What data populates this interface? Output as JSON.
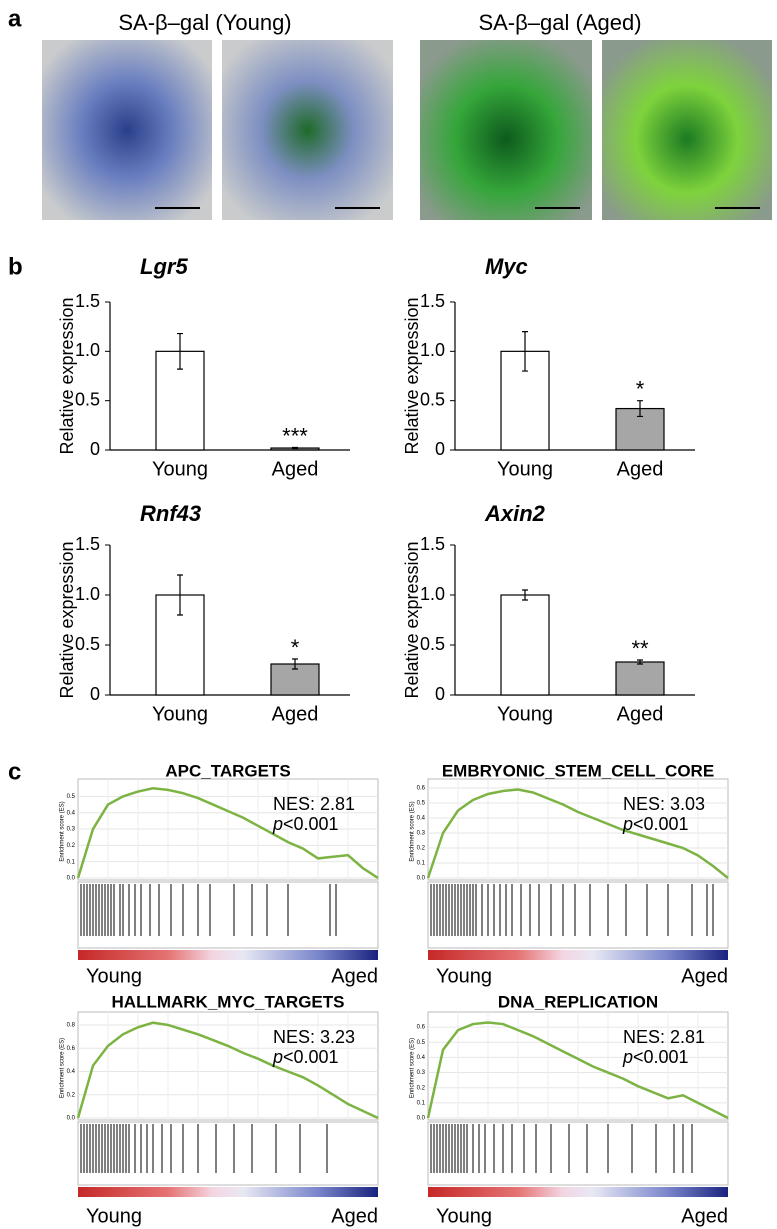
{
  "panel_labels": [
    "a",
    "b",
    "c"
  ],
  "images": {
    "titles": [
      "SA-β–gal (Young)",
      "SA-β–gal (Aged)"
    ]
  },
  "chart_data": [
    {
      "type": "bar",
      "title": "Lgr5",
      "ylabel": "Relative expression",
      "categories": [
        "Young",
        "Aged"
      ],
      "values": [
        1,
        0.02
      ],
      "errors": [
        0.18,
        0.005
      ],
      "colors": [
        "#ffffff",
        "#a6a6a6"
      ],
      "value_annotations": [
        null,
        "***"
      ],
      "ylim": [
        0,
        1.5
      ],
      "yticks": [
        0,
        0.5,
        {
          "value": 1,
          "label": "1.0"
        },
        1.5
      ]
    },
    {
      "type": "bar",
      "title": "Myc",
      "ylabel": "Relative expression",
      "categories": [
        "Young",
        "Aged"
      ],
      "values": [
        1,
        0.42
      ],
      "errors": [
        0.2,
        0.08
      ],
      "colors": [
        "#ffffff",
        "#a6a6a6"
      ],
      "value_annotations": [
        null,
        "*"
      ],
      "ylim": [
        0,
        1.5
      ],
      "yticks": [
        0,
        0.5,
        {
          "value": 1,
          "label": "1.0"
        },
        1.5
      ]
    },
    {
      "type": "bar",
      "title": "Rnf43",
      "ylabel": "Relative expression",
      "categories": [
        "Young",
        "Aged"
      ],
      "values": [
        1,
        0.31
      ],
      "errors": [
        0.2,
        0.05
      ],
      "colors": [
        "#ffffff",
        "#a6a6a6"
      ],
      "value_annotations": [
        null,
        "*"
      ],
      "ylim": [
        0,
        1.5
      ],
      "yticks": [
        0,
        0.5,
        {
          "value": 1,
          "label": "1.0"
        },
        1.5
      ]
    },
    {
      "type": "bar",
      "title": "Axin2",
      "ylabel": "Relative expression",
      "categories": [
        "Young",
        "Aged"
      ],
      "values": [
        1,
        0.33
      ],
      "errors": [
        0.05,
        0.02
      ],
      "colors": [
        "#ffffff",
        "#a6a6a6"
      ],
      "value_annotations": [
        null,
        "**"
      ],
      "ylim": [
        0,
        1.5
      ],
      "yticks": [
        0,
        0.5,
        {
          "value": 1,
          "label": "1.0"
        },
        1.5
      ]
    },
    {
      "type": "line",
      "title": "APC_TARGETS",
      "ylabel": "Enrichment score (ES)",
      "annotation": {
        "nes": "NES: 2.81",
        "p": "p",
        "p_value": "<0.001"
      },
      "x_ends": [
        "Young",
        "Aged"
      ],
      "color": "#7cb342",
      "grid": true,
      "x": [
        0,
        5,
        10,
        15,
        20,
        25,
        30,
        35,
        40,
        45,
        50,
        55,
        60,
        65,
        70,
        75,
        80,
        85,
        90,
        95,
        100
      ],
      "values": [
        0,
        0.3,
        0.45,
        0.5,
        0.53,
        0.55,
        0.54,
        0.52,
        0.49,
        0.45,
        0.41,
        0.37,
        0.32,
        0.27,
        0.22,
        0.18,
        0.12,
        0.13,
        0.14,
        0.06,
        0
      ],
      "hits": [
        1,
        2,
        3,
        4,
        5,
        6,
        7,
        8,
        9,
        10,
        11,
        12,
        14,
        15,
        17,
        19,
        21,
        24,
        27,
        31,
        35,
        40,
        44,
        52,
        58,
        63,
        70,
        84,
        86
      ],
      "xlim": [
        0,
        100
      ],
      "ylim": [
        0,
        0.57
      ],
      "yticks": [
        {
          "value": 0,
          "label": "0.0"
        },
        0.1,
        0.2,
        0.3,
        0.4,
        0.5
      ]
    },
    {
      "type": "line",
      "title": "EMBRYONIC_STEM_CELL_CORE",
      "ylabel": "Enrichment score (ES)",
      "annotation": {
        "nes": "NES: 3.03",
        "p": "p",
        "p_value": "<0.001"
      },
      "x_ends": [
        "Young",
        "Aged"
      ],
      "color": "#7cb342",
      "grid": true,
      "x": [
        0,
        5,
        10,
        15,
        20,
        25,
        30,
        35,
        40,
        45,
        50,
        55,
        60,
        65,
        70,
        75,
        80,
        85,
        90,
        95,
        100
      ],
      "values": [
        0,
        0.3,
        0.45,
        0.52,
        0.56,
        0.58,
        0.59,
        0.57,
        0.53,
        0.49,
        0.44,
        0.4,
        0.36,
        0.32,
        0.29,
        0.26,
        0.23,
        0.2,
        0.15,
        0.08,
        0
      ],
      "hits": [
        1,
        2,
        3,
        4,
        5,
        6,
        7,
        8,
        9,
        10,
        11,
        12,
        13,
        14,
        15,
        16,
        18,
        20,
        22,
        24,
        26,
        28,
        31,
        34,
        37,
        41,
        45,
        49,
        54,
        60,
        66,
        73,
        80,
        88,
        93,
        95
      ],
      "xlim": [
        0,
        100
      ],
      "ylim": [
        0,
        0.62
      ],
      "yticks": [
        {
          "value": 0,
          "label": "0.0"
        },
        0.1,
        0.2,
        0.3,
        0.4,
        0.5,
        0.6
      ]
    },
    {
      "type": "line",
      "title": "HALLMARK_MYC_TARGETS",
      "ylabel": "Enrichment score (ES)",
      "annotation": {
        "nes": "NES: 3.23",
        "p": "p",
        "p_value": "<0.001"
      },
      "x_ends": [
        "Young",
        "Aged"
      ],
      "color": "#7cb342",
      "grid": true,
      "x": [
        0,
        5,
        10,
        15,
        20,
        25,
        30,
        35,
        40,
        45,
        50,
        55,
        60,
        65,
        70,
        75,
        80,
        85,
        90,
        95,
        100
      ],
      "values": [
        0,
        0.45,
        0.62,
        0.72,
        0.78,
        0.82,
        0.8,
        0.76,
        0.72,
        0.67,
        0.62,
        0.56,
        0.51,
        0.45,
        0.4,
        0.35,
        0.28,
        0.2,
        0.12,
        0.06,
        0
      ],
      "hits": [
        1,
        2,
        3,
        4,
        5,
        6,
        7,
        8,
        9,
        10,
        11,
        12,
        13,
        14,
        15,
        16,
        17,
        19,
        21,
        23,
        25,
        28,
        31,
        35,
        40,
        46,
        52,
        58,
        66,
        74,
        83
      ],
      "xlim": [
        0,
        100
      ],
      "ylim": [
        0,
        0.86
      ],
      "yticks": [
        {
          "value": 0,
          "label": "0.0"
        },
        0.2,
        0.4,
        0.6,
        0.8
      ]
    },
    {
      "type": "line",
      "title": "DNA_REPLICATION",
      "ylabel": "Enrichment score (ES)",
      "annotation": {
        "nes": "NES: 2.81",
        "p": "p",
        "p_value": "<0.001"
      },
      "x_ends": [
        "Young",
        "Aged"
      ],
      "color": "#7cb342",
      "grid": true,
      "x": [
        0,
        5,
        10,
        15,
        20,
        25,
        30,
        35,
        40,
        45,
        50,
        55,
        60,
        65,
        70,
        75,
        80,
        85,
        90,
        95,
        100
      ],
      "values": [
        0,
        0.45,
        0.58,
        0.62,
        0.63,
        0.62,
        0.58,
        0.54,
        0.49,
        0.44,
        0.39,
        0.34,
        0.3,
        0.26,
        0.21,
        0.17,
        0.13,
        0.15,
        0.1,
        0.05,
        0
      ],
      "hits": [
        1,
        2,
        3,
        4,
        5,
        6,
        7,
        8,
        9,
        10,
        11,
        12,
        13,
        15,
        17,
        19,
        22,
        25,
        28,
        32,
        36,
        41,
        47,
        53,
        60,
        68,
        76,
        82,
        85,
        88
      ],
      "xlim": [
        0,
        100
      ],
      "ylim": [
        0,
        0.66
      ],
      "yticks": [
        {
          "value": 0,
          "label": "0.0"
        },
        0.1,
        0.2,
        0.3,
        0.4,
        0.5,
        0.6
      ]
    }
  ]
}
